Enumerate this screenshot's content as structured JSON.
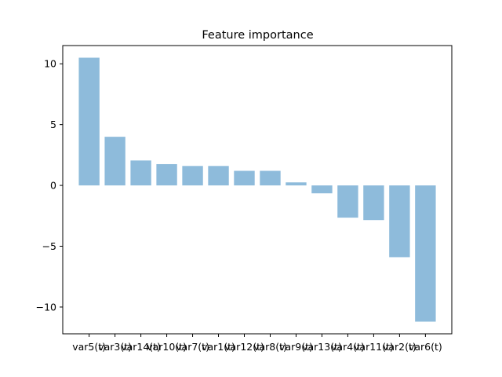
{
  "chart_data": {
    "type": "bar",
    "title": "Feature importance",
    "categories": [
      "var5(t)",
      "var3(t)",
      "var14(t)",
      "var10(t)",
      "var7(t)",
      "var1(t)",
      "var12(t)",
      "var8(t)",
      "var9(t)",
      "var13(t)",
      "var4(t)",
      "var11(t)",
      "var2(t)",
      "var6(t)"
    ],
    "values": [
      10.5,
      4.0,
      2.05,
      1.75,
      1.6,
      1.6,
      1.2,
      1.2,
      0.25,
      -0.65,
      -2.65,
      -2.85,
      -5.9,
      -11.2
    ],
    "ylim": [
      -12.2,
      11.5
    ],
    "yticks": [
      -10,
      -5,
      0,
      5,
      10
    ],
    "ytick_labels": [
      "−10",
      "−5",
      "0",
      "5",
      "10"
    ],
    "bar_color": "#8ebbdb",
    "grid": false
  }
}
